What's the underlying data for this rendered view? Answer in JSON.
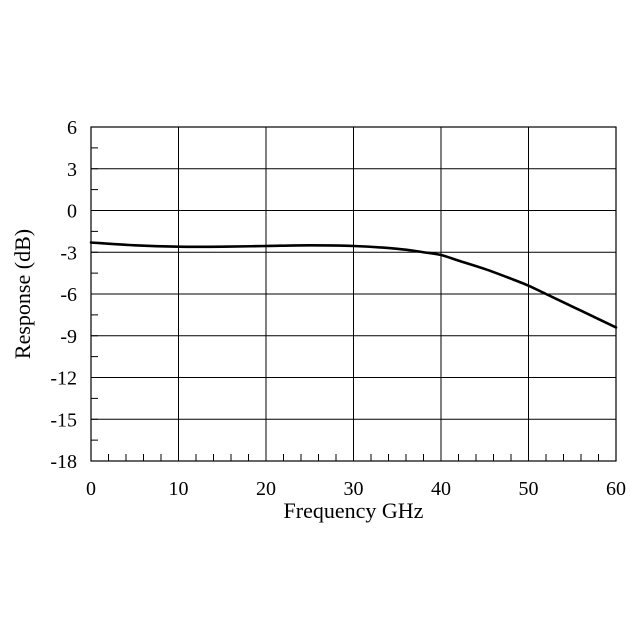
{
  "chart_data": {
    "type": "line",
    "xlabel": "Frequency GHz",
    "ylabel": "Response (dB)",
    "xlim": [
      0,
      60
    ],
    "ylim": [
      -18,
      6
    ],
    "x_ticks": [
      0,
      10,
      20,
      30,
      40,
      50,
      60
    ],
    "y_ticks": [
      6,
      3,
      0,
      -3,
      -6,
      -9,
      -12,
      -15,
      -18
    ],
    "x_tick_labels": [
      "0",
      "10",
      "20",
      "30",
      "40",
      "50",
      "60"
    ],
    "y_tick_labels": [
      "6",
      "3",
      "0",
      "-3",
      "-6",
      "-9",
      "-12",
      "-15",
      "-18"
    ],
    "x_minor_step": 2,
    "y_minor_step": 1.5,
    "grid": true,
    "legend": "none",
    "series": [
      {
        "color": "#000000",
        "x": [
          0,
          5,
          10,
          15,
          20,
          25,
          30,
          35,
          38,
          40,
          42,
          45,
          48,
          50,
          52,
          55,
          58,
          60
        ],
        "y": [
          -2.3,
          -2.5,
          -2.6,
          -2.6,
          -2.55,
          -2.5,
          -2.55,
          -2.75,
          -3.0,
          -3.2,
          -3.6,
          -4.2,
          -4.9,
          -5.4,
          -6.0,
          -6.9,
          -7.8,
          -8.4
        ]
      }
    ]
  }
}
